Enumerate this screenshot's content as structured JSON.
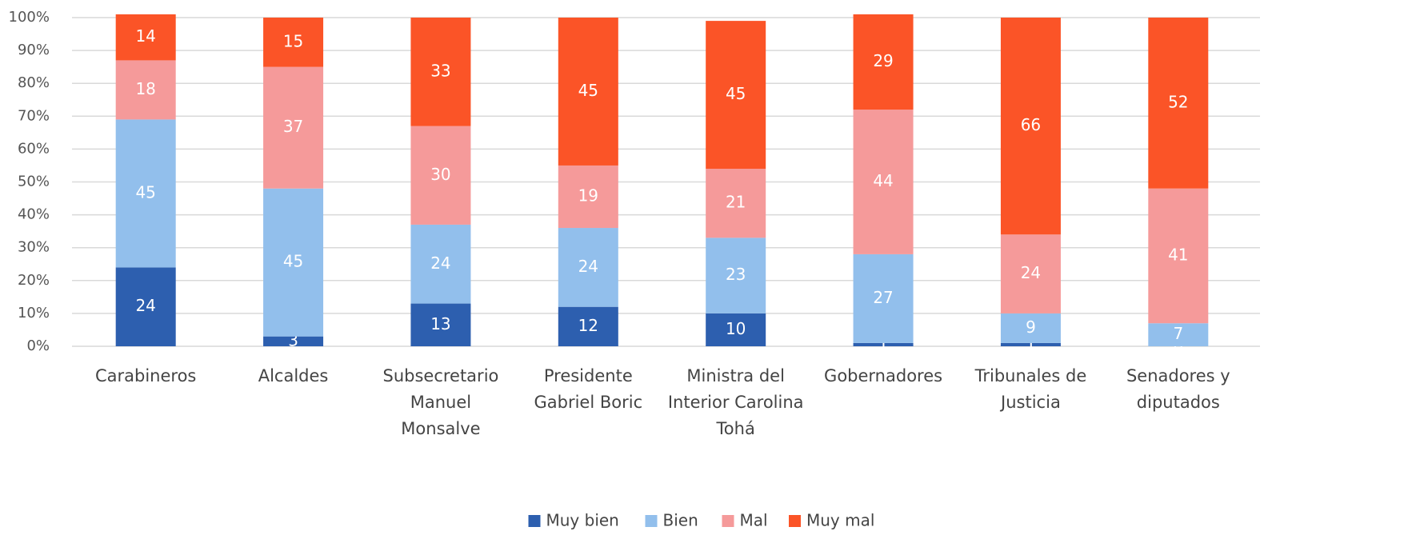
{
  "chart_data": {
    "type": "stacked_bar",
    "categories": [
      "Carabineros",
      "Alcaldes",
      "Subsecretario Manuel Monsalve",
      "Presidente Gabriel Boric",
      "Ministra del Interior Carolina Tohá",
      "Gobernadores",
      "Tribunales de Justicia",
      "Senadores y diputados"
    ],
    "series": [
      {
        "name": "Muy bien",
        "color": "#2d5faf",
        "values": [
          24,
          3,
          13,
          12,
          10,
          1,
          1,
          0
        ]
      },
      {
        "name": "Bien",
        "color": "#92bfec",
        "values": [
          45,
          45,
          24,
          24,
          23,
          27,
          9,
          7
        ]
      },
      {
        "name": "Mal",
        "color": "#f59a9a",
        "values": [
          18,
          37,
          30,
          19,
          21,
          44,
          24,
          41
        ]
      },
      {
        "name": "Muy mal",
        "color": "#fb5427",
        "values": [
          14,
          15,
          33,
          45,
          45,
          29,
          66,
          52
        ]
      }
    ],
    "ylim": [
      0,
      100
    ],
    "yticks": [
      {
        "value": 0,
        "label": "0%"
      },
      {
        "value": 10,
        "label": "10%"
      },
      {
        "value": 20,
        "label": "20%"
      },
      {
        "value": 30,
        "label": "30%"
      },
      {
        "value": 40,
        "label": "40%"
      },
      {
        "value": 50,
        "label": "50%"
      },
      {
        "value": 60,
        "label": "60%"
      },
      {
        "value": 70,
        "label": "70%"
      },
      {
        "value": 80,
        "label": "80%"
      },
      {
        "value": 90,
        "label": "90%"
      },
      {
        "value": 100,
        "label": "100%"
      }
    ],
    "grid": true,
    "legend": "bottom"
  }
}
